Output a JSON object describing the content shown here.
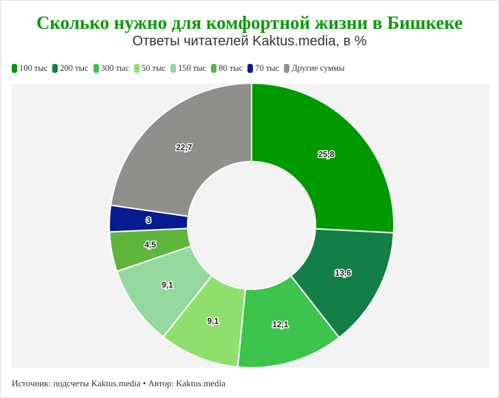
{
  "chart_data": {
    "type": "pie",
    "variant": "donut",
    "title": "Сколько нужно для комфортной жизни в Бишкеке",
    "subtitle": "Ответы читателей Kaktus.media, в %",
    "legend_position": "top-left",
    "categories": [
      "100 тыс",
      "200 тыс",
      "300 тыс",
      "50 тыс",
      "150 тыс",
      "80 тыс",
      "70 тыс",
      "Другие суммы"
    ],
    "values": [
      25.8,
      13.6,
      12.1,
      9.1,
      9.1,
      4.5,
      3,
      22.7
    ],
    "labels": [
      "25,8",
      "13,6",
      "12,1",
      "9,1",
      "9,1",
      "4,5",
      "3",
      "22,7"
    ],
    "colors": [
      "#009900",
      "#137f46",
      "#3cc44c",
      "#8fdf6e",
      "#95d89e",
      "#5fb53e",
      "#061a91",
      "#918f8c"
    ]
  },
  "footer": {
    "text": "Источник: подсчеты Kaktus.media • Автор: Kaktus.media"
  }
}
